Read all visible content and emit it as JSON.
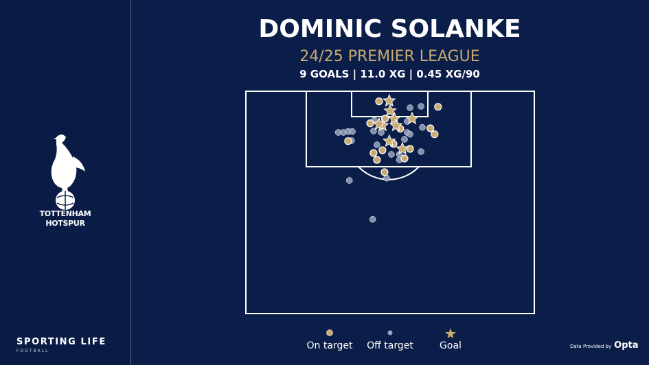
{
  "header": {
    "title": "DOMINIC SOLANKE",
    "subtitle": "24/25 PREMIER LEAGUE",
    "stats": "9 GOALS | 11.0 XG | 0.45 XG/90"
  },
  "club": {
    "name_line1": "TOTTENHAM",
    "name_line2": "HOTSPUR"
  },
  "brand": {
    "name": "SPORTING LIFE",
    "sub": "FOOTBALL"
  },
  "credit": {
    "text": "Data Provided by",
    "provider": "Opta"
  },
  "colors": {
    "background": "#0b1e4a",
    "on_target": "#c9ab70",
    "off_target": "#9aa4bd",
    "goal": "#c9ab70",
    "lines": "#ffffff"
  },
  "legend": [
    {
      "label": "On target",
      "marker": "circle-gold"
    },
    {
      "label": "Off target",
      "marker": "circle-grey"
    },
    {
      "label": "Goal",
      "marker": "star-gold"
    }
  ],
  "chart_data": {
    "type": "scatter",
    "units": "metres (x across pitch width 0-68, y distance from goal line)",
    "xlim": [
      0,
      68
    ],
    "ylim": [
      0,
      48.6
    ],
    "series": [
      {
        "name": "On target",
        "points": [
          [
            31.4,
            2.2
          ],
          [
            45.3,
            3.4
          ],
          [
            29.3,
            7.0
          ],
          [
            32.8,
            6.0
          ],
          [
            36.4,
            8.2
          ],
          [
            43.5,
            8.1
          ],
          [
            44.5,
            9.4
          ],
          [
            24.1,
            10.9
          ],
          [
            34.8,
            11.5
          ],
          [
            38.7,
            12.6
          ],
          [
            32.2,
            12.9
          ],
          [
            30.1,
            13.5
          ],
          [
            30.9,
            15.0
          ],
          [
            37.4,
            14.7
          ],
          [
            32.7,
            17.7
          ]
        ]
      },
      {
        "name": "Off target",
        "points": [
          [
            38.7,
            3.6
          ],
          [
            41.3,
            3.3
          ],
          [
            21.8,
            9.0
          ],
          [
            23.0,
            9.0
          ],
          [
            24.1,
            8.8
          ],
          [
            25.1,
            8.8
          ],
          [
            24.9,
            10.8
          ],
          [
            30.1,
            8.7
          ],
          [
            31.9,
            9.0
          ],
          [
            38.0,
            6.6
          ],
          [
            41.6,
            7.9
          ],
          [
            38.0,
            9.0
          ],
          [
            38.7,
            9.4
          ],
          [
            37.4,
            10.5
          ],
          [
            30.9,
            11.7
          ],
          [
            34.3,
            13.8
          ],
          [
            36.2,
            13.8
          ],
          [
            36.2,
            15.0
          ],
          [
            41.3,
            13.2
          ],
          [
            33.2,
            19.0
          ],
          [
            24.4,
            19.5
          ],
          [
            30.3,
            6.4
          ],
          [
            29.9,
            28.0
          ]
        ]
      },
      {
        "name": "Goal",
        "points": [
          [
            33.8,
            2.1
          ],
          [
            34.0,
            4.3
          ],
          [
            35.0,
            6.0
          ],
          [
            39.2,
            6.0
          ],
          [
            32.2,
            7.5
          ],
          [
            35.4,
            7.5
          ],
          [
            33.8,
            10.9
          ],
          [
            36.9,
            12.6
          ],
          [
            31.4,
            7.2
          ]
        ]
      }
    ]
  }
}
